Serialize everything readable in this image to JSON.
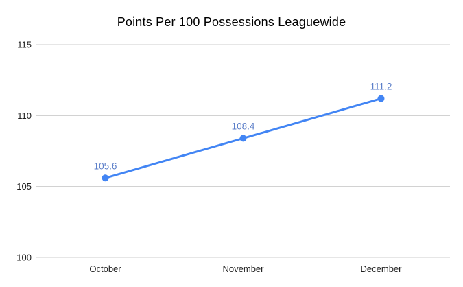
{
  "chart_data": {
    "type": "line",
    "title": "Points Per 100 Possessions Leaguewide",
    "categories": [
      "October",
      "November",
      "December"
    ],
    "values": [
      105.6,
      108.4,
      111.2
    ],
    "data_labels": [
      "105.6",
      "108.4",
      "111.2"
    ],
    "xlabel": "",
    "ylabel": "",
    "ylim": [
      100,
      115
    ],
    "yticks": [
      100,
      105,
      110,
      115
    ],
    "grid": true,
    "legend": "none",
    "colors": {
      "line": "#4285f4",
      "point": "#4285f4",
      "data_label": "#5a7dc8",
      "gridline": "#cccccc",
      "axis_text": "#212121",
      "title": "#000000",
      "background": "#ffffff"
    }
  }
}
